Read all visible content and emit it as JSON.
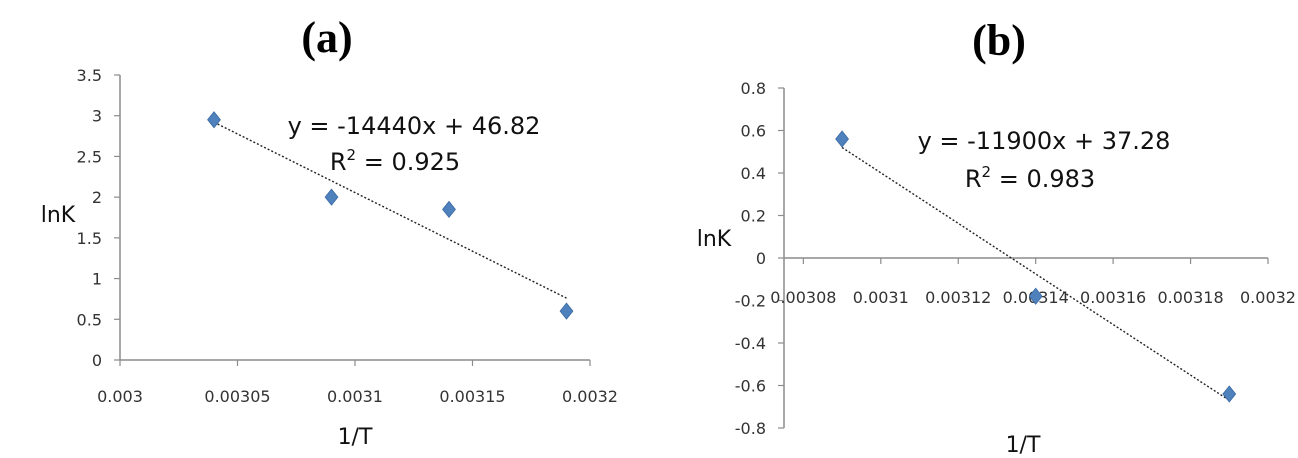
{
  "chart_data": [
    {
      "type": "scatter",
      "title": "(a)",
      "xlabel": "1/T",
      "ylabel": "lnK",
      "xlim": [
        0.003,
        0.0032
      ],
      "ylim": [
        0,
        3.5
      ],
      "xticks": [
        "0.003",
        "0.00305",
        "0.0031",
        "0.00315",
        "0.0032"
      ],
      "xtick_values": [
        0.003,
        0.00305,
        0.0031,
        0.00315,
        0.0032
      ],
      "yticks": [
        "0",
        "0.5",
        "1",
        "1.5",
        "2",
        "2.5",
        "3",
        "3.5"
      ],
      "ytick_values": [
        0,
        0.5,
        1,
        1.5,
        2,
        2.5,
        3,
        3.5
      ],
      "points": [
        {
          "x": 0.00304,
          "y": 2.95
        },
        {
          "x": 0.00309,
          "y": 2.0
        },
        {
          "x": 0.00314,
          "y": 1.85
        },
        {
          "x": 0.00319,
          "y": 0.6
        }
      ],
      "trendline": {
        "x_from": 0.00304,
        "x_to": 0.00319,
        "y_from": 2.92,
        "y_to": 0.76
      },
      "equation": "y = -14440x + 46.82",
      "r_squared_label": "R",
      "r_squared_exp": "2",
      "r_squared_value": " = 0.925",
      "grid": false,
      "legend": "none",
      "marker_color": "#4f81bd"
    },
    {
      "type": "scatter",
      "title": "(b)",
      "xlabel": "1/T",
      "ylabel": "lnK",
      "xlim": [
        0.003075,
        0.0032
      ],
      "ylim": [
        -0.8,
        0.8
      ],
      "xticks": [
        "0.00308",
        "0.0031",
        "0.00312",
        "0.00314",
        "0.00316",
        "0.00318",
        "0.0032"
      ],
      "xtick_values": [
        0.00308,
        0.0031,
        0.00312,
        0.00314,
        0.00316,
        0.00318,
        0.0032
      ],
      "yticks": [
        "0.8",
        "0.6",
        "0.4",
        "0.2",
        "0",
        "-0.2",
        "-0.4",
        "-0.6",
        "-0.8"
      ],
      "ytick_values": [
        0.8,
        0.6,
        0.4,
        0.2,
        0,
        -0.2,
        -0.4,
        -0.6,
        -0.8
      ],
      "points": [
        {
          "x": 0.00309,
          "y": 0.56
        },
        {
          "x": 0.00314,
          "y": -0.18
        },
        {
          "x": 0.00319,
          "y": -0.64
        }
      ],
      "trendline": {
        "x_from": 0.00309,
        "x_to": 0.00319,
        "y_from": 0.52,
        "y_to": -0.67
      },
      "equation": "y = -11900x + 37.28",
      "r_squared_label": "R",
      "r_squared_exp": "2",
      "r_squared_value": " = 0.983",
      "grid": false,
      "legend": "none",
      "marker_color": "#4f81bd"
    }
  ]
}
